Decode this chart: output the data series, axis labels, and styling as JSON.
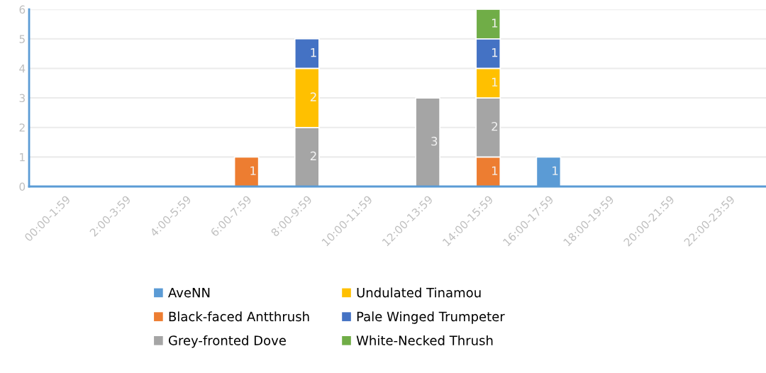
{
  "chart_data": {
    "type": "bar",
    "stacked": true,
    "data_labels": true,
    "grid": "y",
    "legend": "bottom",
    "categories": [
      "00:00-1:59",
      "2:00-3:59",
      "4:00-5:59",
      "6:00-7:59",
      "8:00-9:59",
      "10:00-11:59",
      "12:00-13:59",
      "14:00-15:59",
      "16:00-17:59",
      "18:00-19:59",
      "20:00-21:59",
      "22:00-23:59"
    ],
    "ylim": [
      0,
      6
    ],
    "yticks": [
      0,
      1,
      2,
      3,
      4,
      5,
      6
    ],
    "series": [
      {
        "name": "AveNN",
        "color": "#5b9bd5",
        "values": [
          null,
          null,
          null,
          null,
          null,
          null,
          null,
          null,
          1,
          null,
          null,
          null
        ]
      },
      {
        "name": "Black-faced Antthrush",
        "color": "#ed7d31",
        "values": [
          null,
          null,
          null,
          1,
          null,
          null,
          null,
          1,
          null,
          null,
          null,
          null
        ]
      },
      {
        "name": "Grey-fronted Dove",
        "color": "#a5a5a5",
        "values": [
          null,
          null,
          null,
          null,
          2,
          null,
          3,
          2,
          null,
          null,
          null,
          null
        ]
      },
      {
        "name": "Undulated Tinamou",
        "color": "#ffc000",
        "values": [
          null,
          null,
          null,
          null,
          2,
          null,
          null,
          1,
          null,
          null,
          null,
          null
        ]
      },
      {
        "name": "Pale Winged Trumpeter",
        "color": "#4472c4",
        "values": [
          null,
          null,
          null,
          null,
          1,
          null,
          null,
          1,
          null,
          null,
          null,
          null
        ]
      },
      {
        "name": "White-Necked Thrush",
        "color": "#70ad47",
        "values": [
          null,
          null,
          null,
          null,
          null,
          null,
          null,
          1,
          null,
          null,
          null,
          null
        ]
      }
    ]
  }
}
